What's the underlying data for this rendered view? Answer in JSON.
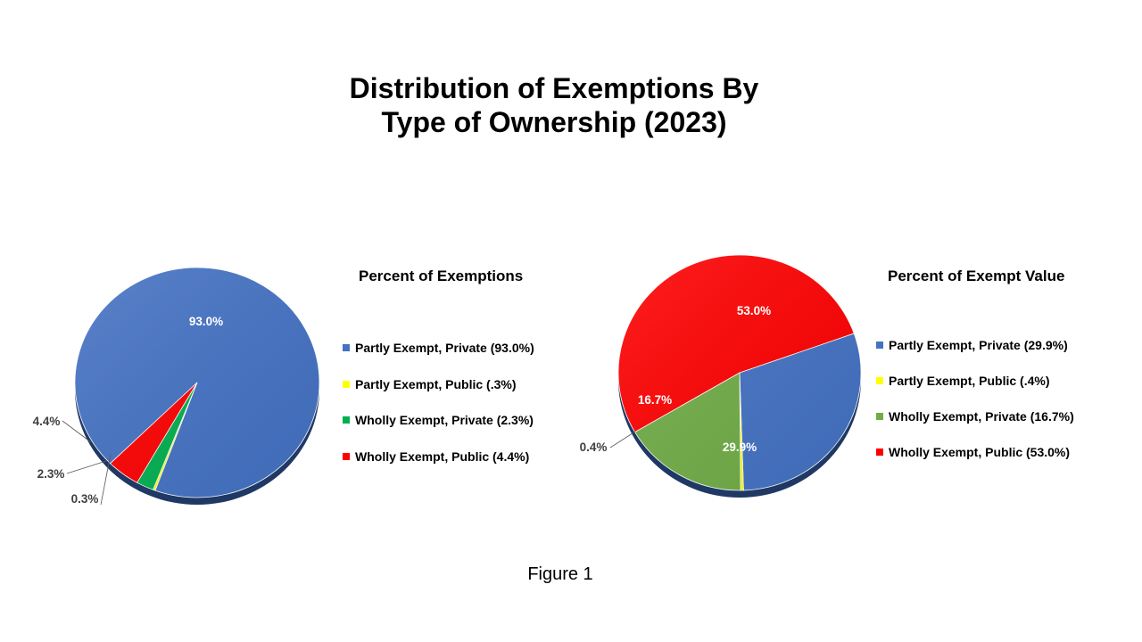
{
  "title_line1": "Distribution of Exemptions By",
  "title_line2": "Type of Ownership (2023)",
  "caption": "Figure 1",
  "chart_data": [
    {
      "type": "pie",
      "title": "Percent of Exemptions",
      "categories": [
        "Partly Exempt, Private",
        "Partly Exempt, Public",
        "Wholly Exempt, Private",
        "Wholly Exempt, Public"
      ],
      "values": [
        93.0,
        0.3,
        2.3,
        4.4
      ],
      "labels": [
        "93.0%",
        "0.3%",
        "2.3%",
        "4.4%"
      ],
      "legend": [
        "Partly Exempt, Private (93.0%)",
        "Partly Exempt, Public (.3%)",
        "Wholly Exempt, Private (2.3%)",
        "Wholly Exempt, Public (4.4%)"
      ],
      "colors": [
        "#4472c4",
        "#ffff00",
        "#00b050",
        "#ff0000"
      ],
      "legend_position": "right"
    },
    {
      "type": "pie",
      "title": "Percent of Exempt Value",
      "categories": [
        "Partly Exempt, Private",
        "Partly Exempt, Public",
        "Wholly Exempt, Private",
        "Wholly Exempt, Public"
      ],
      "values": [
        29.9,
        0.4,
        16.7,
        53.0
      ],
      "labels": [
        "29.9%",
        "0.4%",
        "16.7%",
        "53.0%"
      ],
      "legend": [
        "Partly Exempt, Private (29.9%)",
        "Partly Exempt, Public (.4%)",
        "Wholly Exempt, Private (16.7%)",
        "Wholly Exempt, Public (53.0%)"
      ],
      "colors": [
        "#4472c4",
        "#ffff00",
        "#70ad47",
        "#ff0000"
      ],
      "legend_position": "right"
    }
  ]
}
